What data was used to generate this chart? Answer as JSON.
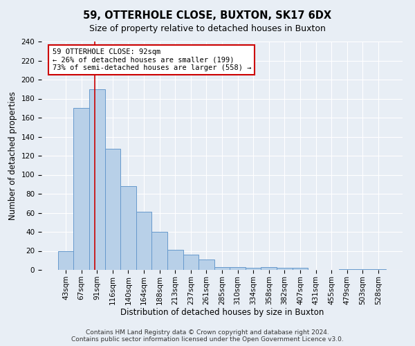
{
  "title": "59, OTTERHOLE CLOSE, BUXTON, SK17 6DX",
  "subtitle": "Size of property relative to detached houses in Buxton",
  "xlabel": "Distribution of detached houses by size in Buxton",
  "ylabel": "Number of detached properties",
  "bar_labels": [
    "43sqm",
    "67sqm",
    "91sqm",
    "116sqm",
    "140sqm",
    "164sqm",
    "188sqm",
    "213sqm",
    "237sqm",
    "261sqm",
    "285sqm",
    "310sqm",
    "334sqm",
    "358sqm",
    "382sqm",
    "407sqm",
    "431sqm",
    "455sqm",
    "479sqm",
    "503sqm",
    "528sqm"
  ],
  "bar_values": [
    20,
    170,
    190,
    127,
    88,
    61,
    40,
    21,
    16,
    11,
    3,
    3,
    2,
    3,
    2,
    2,
    0,
    0,
    1,
    1,
    1
  ],
  "bar_color": "#b8d0e8",
  "bar_edge_color": "#6699cc",
  "annotation_box_text": "59 OTTERHOLE CLOSE: 92sqm\n← 26% of detached houses are smaller (199)\n73% of semi-detached houses are larger (558) →",
  "annotation_box_color": "white",
  "annotation_box_edge_color": "#cc0000",
  "vline_color": "#cc0000",
  "vline_x_index": 1.85,
  "ylim": [
    0,
    240
  ],
  "yticks": [
    0,
    20,
    40,
    60,
    80,
    100,
    120,
    140,
    160,
    180,
    200,
    220,
    240
  ],
  "footer_line1": "Contains HM Land Registry data © Crown copyright and database right 2024.",
  "footer_line2": "Contains public sector information licensed under the Open Government Licence v3.0.",
  "background_color": "#e8eef5",
  "plot_bg_color": "#e8eef5",
  "grid_color": "#ffffff",
  "title_fontsize": 10.5,
  "subtitle_fontsize": 9,
  "axis_label_fontsize": 8.5,
  "tick_fontsize": 7.5,
  "annotation_fontsize": 7.5,
  "footer_fontsize": 6.5
}
